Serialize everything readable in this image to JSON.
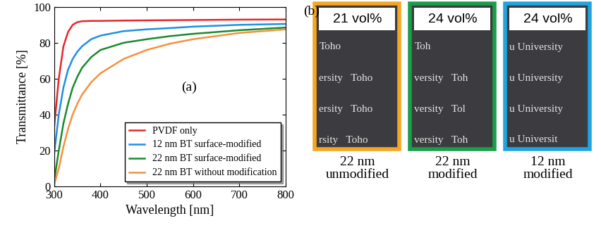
{
  "chart_data": {
    "type": "line",
    "panel_label": "(a)",
    "xlabel": "Wavelength [nm]",
    "ylabel": "Transmittance [%]",
    "xlim": [
      300,
      800
    ],
    "ylim": [
      0,
      100
    ],
    "xticks": [
      300,
      400,
      500,
      600,
      700,
      800
    ],
    "yticks": [
      0,
      20,
      40,
      60,
      80,
      100
    ],
    "legend": "lower right",
    "x": [
      300,
      310,
      320,
      330,
      340,
      350,
      360,
      380,
      400,
      450,
      500,
      550,
      600,
      700,
      800
    ],
    "series": [
      {
        "name": "PVDF only",
        "color": "#e8262a",
        "values": [
          33,
          60,
          78,
          86,
          90,
          91.5,
          92,
          92.2,
          92.2,
          92.4,
          92.5,
          92.6,
          92.7,
          92.9,
          93
        ]
      },
      {
        "name": "12 nm BT surface-modified",
        "color": "#1e90e0",
        "values": [
          18,
          40,
          55,
          65,
          71,
          75,
          78,
          82,
          84,
          86.5,
          87.5,
          88.2,
          89,
          90,
          90.5
        ]
      },
      {
        "name": "22 nm BT surface-modified",
        "color": "#1a8a2a",
        "values": [
          3,
          20,
          35,
          46,
          55,
          61,
          66,
          72,
          76,
          80,
          82,
          83.7,
          85,
          87,
          88.5
        ]
      },
      {
        "name": "22 nm BT without modification",
        "color": "#f5913c",
        "values": [
          1,
          10,
          22,
          32,
          40,
          46,
          51,
          58,
          63,
          71,
          76,
          79.5,
          82,
          85.5,
          87.5
        ]
      }
    ]
  },
  "photos": {
    "panel_label": "(b)",
    "items": [
      {
        "label": "21 vol%",
        "caption": [
          "22 nm",
          "unmodified"
        ],
        "color": "#f5a623",
        "background_text": [
          "Toho",
          "ersity   Toho",
          "ersity   Toho",
          "rsity   Toho"
        ]
      },
      {
        "label": "24 vol%",
        "caption": [
          "22 nm",
          "modified"
        ],
        "color": "#1a9e48",
        "background_text": [
          "Toh",
          "versity   Toh",
          "versity   Tol",
          "versity   Toh"
        ]
      },
      {
        "label": "24 vol%",
        "caption": [
          "12 nm",
          "modified"
        ],
        "color": "#1fa5e0",
        "background_text": [
          "u University",
          "u University",
          "u University",
          "u Universit"
        ]
      }
    ]
  }
}
